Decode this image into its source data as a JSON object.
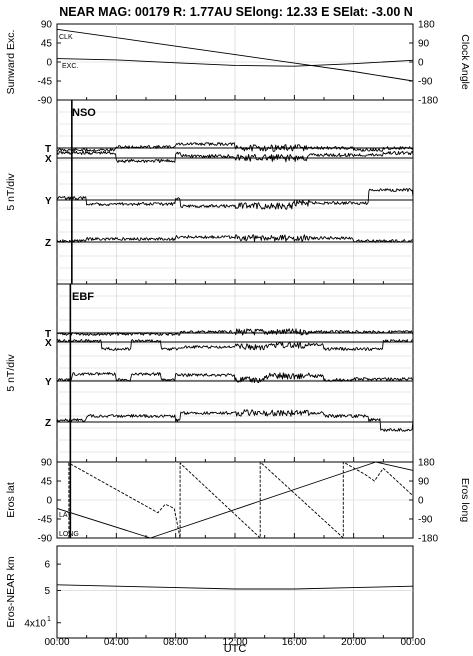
{
  "title": "NEAR MAG: 00179  R: 1.77AU  SElong:   12.33 E  SElat:   -3.00 N",
  "xlabel": "UTC",
  "xticks": [
    "00:00",
    "04:00",
    "08:00",
    "12:00",
    "16:00",
    "20:00",
    "00:00"
  ],
  "chart_data": [
    {
      "type": "line",
      "panel": "clock-sunward",
      "ylabel_left": "Sunward Exc.",
      "ylabel_right": "Clock Angle",
      "yticks_left": [
        "90",
        "45",
        "0",
        "-45",
        "-90"
      ],
      "yticks_right": [
        "180",
        "90",
        "0",
        "-90",
        "-180"
      ],
      "ylim_left": [
        -90,
        90
      ],
      "ylim_right": [
        -180,
        180
      ],
      "series": [
        {
          "name": "CLK",
          "axis": "right",
          "x": [
            0,
            6,
            12,
            16,
            20,
            24
          ],
          "values": [
            155,
            95,
            35,
            -5,
            -45,
            -90
          ]
        },
        {
          "name": "EXC.",
          "axis": "left",
          "x": [
            0,
            4,
            8,
            12,
            16,
            20,
            24
          ],
          "values": [
            8,
            5,
            -2,
            -8,
            -10,
            -4,
            4
          ]
        }
      ]
    },
    {
      "type": "line",
      "panel": "NSO",
      "tag": "NSO",
      "ylabel": "5 nT/div",
      "components": [
        "T",
        "X",
        "Y",
        "Z"
      ]
    },
    {
      "type": "line",
      "panel": "EBF",
      "tag": "EBF",
      "ylabel": "5 nT/div",
      "components": [
        "T",
        "X",
        "Y",
        "Z"
      ]
    },
    {
      "type": "line",
      "panel": "eros",
      "ylabel_left": "Eros lat",
      "ylabel_right": "Eros long",
      "yticks_left": [
        "90",
        "45",
        "0",
        "-45",
        "-90"
      ],
      "yticks_right": [
        "180",
        "90",
        "0",
        "-90",
        "-180"
      ],
      "ylim_left": [
        -90,
        90
      ],
      "ylim_right": [
        -180,
        180
      ],
      "series": [
        {
          "name": "LAT",
          "axis": "left",
          "x": [
            0,
            6.3,
            21.5,
            24
          ],
          "values": [
            -20,
            -90,
            90,
            70
          ]
        },
        {
          "name": "LONG",
          "axis": "right",
          "x": [
            0.8,
            0.8,
            6.8,
            7.3,
            7.9,
            8.3,
            8.3,
            13.7,
            13.7,
            19.3,
            19.3,
            20.8,
            21.4,
            22.0,
            24
          ],
          "values": [
            -180,
            175,
            -60,
            -20,
            -40,
            -180,
            175,
            -180,
            180,
            -180,
            180,
            120,
            90,
            150,
            20
          ]
        }
      ]
    },
    {
      "type": "line",
      "panel": "range",
      "ylabel": "Eros-NEAR km",
      "yscale": "log",
      "yticks": [
        "6",
        "5",
        "4x10"
      ],
      "ytick_exponent": "1",
      "series": [
        {
          "name": "range",
          "x": [
            0,
            4,
            8,
            12,
            16,
            20,
            24
          ],
          "values": [
            52,
            51.5,
            51,
            50.5,
            50.5,
            51,
            51.5
          ]
        }
      ]
    }
  ]
}
